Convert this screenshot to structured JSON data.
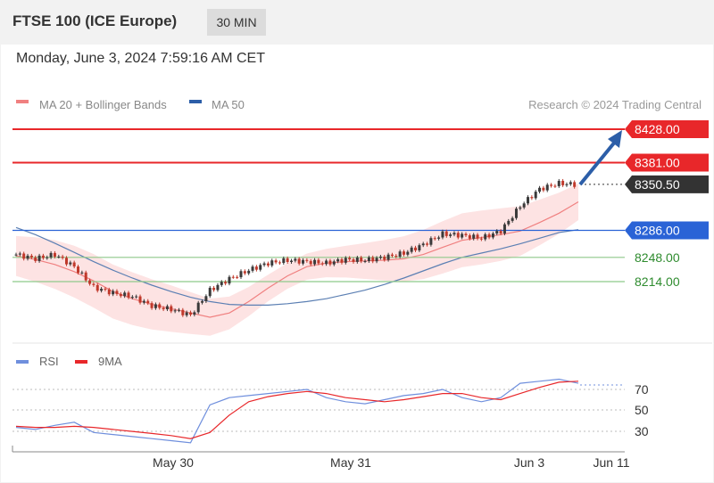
{
  "header": {
    "title": "FTSE 100 (ICE Europe)",
    "timeframe": "30 MIN",
    "datetime": "Monday, June 3, 2024 7:59:16 AM CET"
  },
  "colors": {
    "resistance": "#e8272a",
    "pivot": "#2a63d6",
    "support": "#8ec98a",
    "current": "#333333",
    "ma20": "#f08080",
    "band": "#fde3e3",
    "ma50": "#5b7fb3",
    "candle_up": "#3a3a3a",
    "candle_down": "#c0392b",
    "arrow": "#2c5ea8",
    "rsi": "#6f8fdd",
    "rsi_ma": "#e8272a"
  },
  "legend": {
    "ma20": "MA 20 + Bollinger Bands",
    "ma50": "MA 50",
    "copyright": "Research © 2024 Trading Central"
  },
  "levels": [
    {
      "value": "8428.00",
      "type": "resistance"
    },
    {
      "value": "8381.00",
      "type": "resistance"
    },
    {
      "value": "8350.50",
      "type": "current"
    },
    {
      "value": "8286.00",
      "type": "pivot"
    },
    {
      "value": "8248.00",
      "type": "support"
    },
    {
      "value": "8214.00",
      "type": "support"
    }
  ],
  "rsi_legend": {
    "rsi": "RSI",
    "ma": "9MA"
  },
  "rsi_ticks": [
    "70",
    "50",
    "30"
  ],
  "x_ticks": [
    "May 30",
    "May 31",
    "Jun 3",
    "Jun 11"
  ],
  "chart_data": [
    {
      "type": "line",
      "subtype": "candlestick",
      "series": [
        {
          "name": "MA 20 + Bollinger Bands",
          "values": [
            8250,
            8245,
            8238,
            8228,
            8215,
            8200,
            8190,
            8182,
            8176,
            8170,
            8164,
            8170,
            8186,
            8205,
            8222,
            8235,
            8240,
            8242,
            8243,
            8244,
            8246,
            8252,
            8262,
            8272,
            8276,
            8280,
            8285,
            8297,
            8310,
            8326
          ]
        },
        {
          "name": "MA 50",
          "values": [
            8290,
            8280,
            8268,
            8255,
            8242,
            8230,
            8219,
            8209,
            8200,
            8192,
            8186,
            8182,
            8181,
            8181,
            8183,
            8186,
            8190,
            8196,
            8202,
            8210,
            8219,
            8229,
            8239,
            8248,
            8254,
            8260,
            8267,
            8275,
            8283,
            8287
          ]
        },
        {
          "name": "Close",
          "values": [
            8252,
            8246,
            8252,
            8235,
            8206,
            8198,
            8193,
            8180,
            8175,
            8167,
            8202,
            8218,
            8230,
            8240,
            8244,
            8242,
            8240,
            8245,
            8244,
            8248,
            8254,
            8266,
            8281,
            8279,
            8275,
            8285,
            8320,
            8344,
            8352,
            8350
          ]
        }
      ],
      "levels": [
        8428.0,
        8381.0,
        8350.5,
        8286.0,
        8248.0,
        8214.0
      ]
    },
    {
      "type": "line",
      "series": [
        {
          "name": "RSI",
          "values": [
            33,
            31,
            35,
            38,
            28,
            26,
            24,
            22,
            20,
            18,
            55,
            62,
            64,
            66,
            68,
            70,
            62,
            58,
            56,
            60,
            64,
            66,
            70,
            62,
            58,
            62,
            76,
            78,
            80,
            76
          ]
        },
        {
          "name": "9MA",
          "values": [
            34,
            33,
            33,
            34,
            33,
            31,
            29,
            27,
            25,
            22,
            28,
            45,
            58,
            63,
            66,
            68,
            66,
            62,
            60,
            58,
            60,
            63,
            66,
            66,
            62,
            60,
            66,
            72,
            77,
            78
          ]
        }
      ],
      "ylim": [
        20,
        85
      ]
    }
  ]
}
